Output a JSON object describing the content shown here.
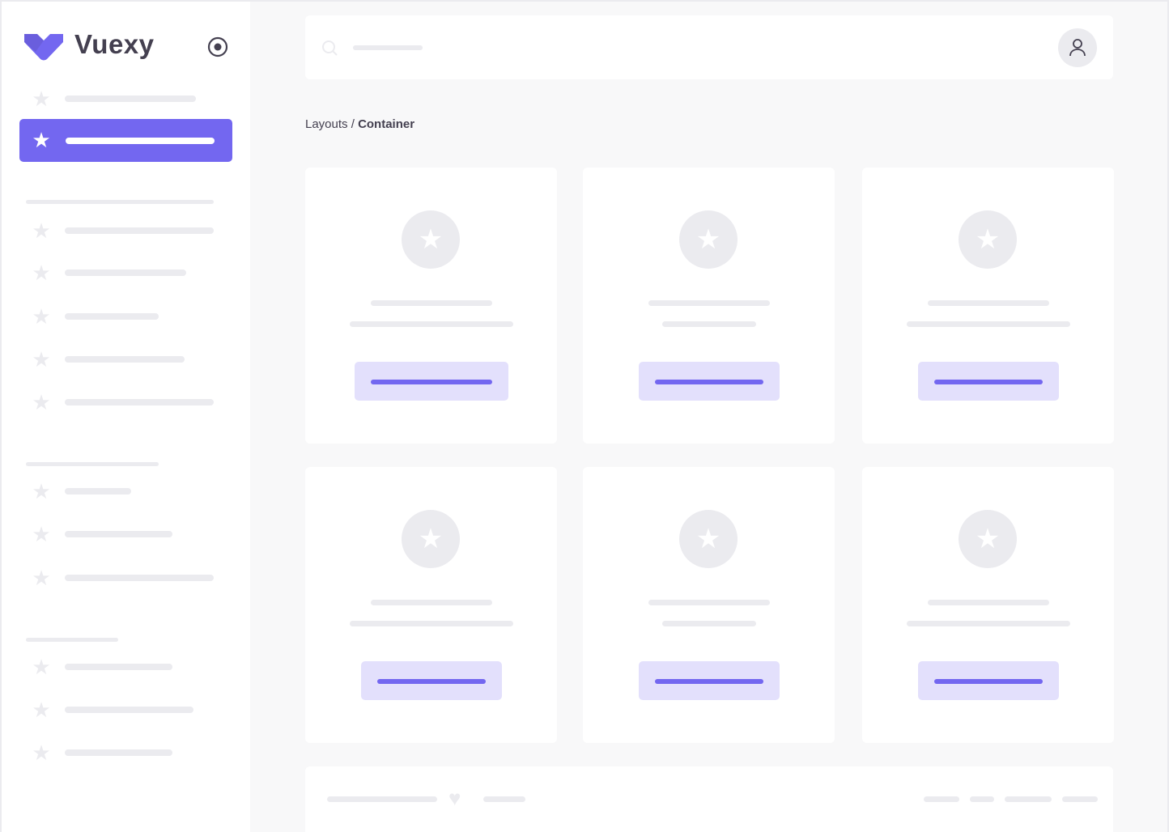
{
  "brand": {
    "name": "Vuexy",
    "color": "#7367f0"
  },
  "breadcrumb": {
    "parent": "Layouts",
    "separator": " / ",
    "current": "Container"
  },
  "colors": {
    "accent": "#7367f0",
    "accent_light": "#e3e0fc",
    "skeleton": "#ebebef",
    "background": "#f8f8f9"
  },
  "icons": {
    "logo": "vuexy-logo",
    "toggle": "radio-circle-icon",
    "nav": "star-icon",
    "avatar": "user-icon",
    "search": "search-icon",
    "footer": "heart-icon"
  }
}
